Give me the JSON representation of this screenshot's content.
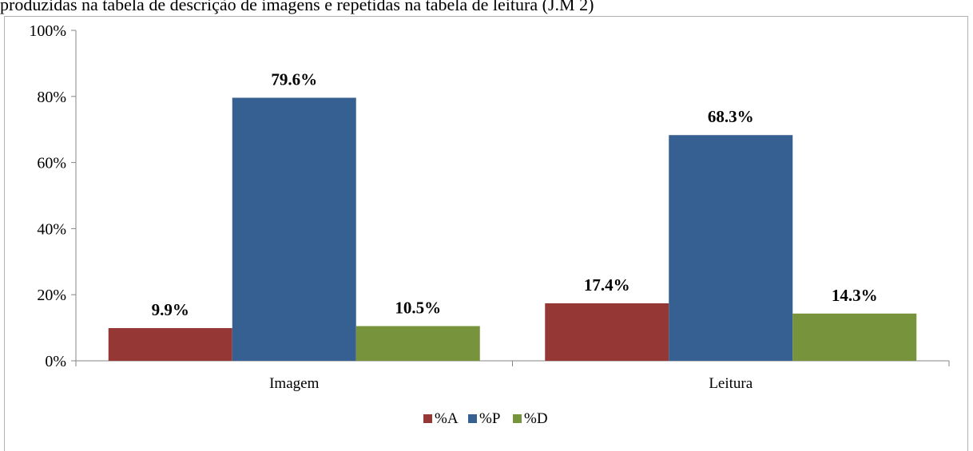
{
  "caption": "produzidas na tabela de descrição de imagens e repetidas na tabela de leitura (J.M 2)",
  "chart_data": {
    "type": "bar",
    "categories": [
      "Imagem",
      "Leitura"
    ],
    "series": [
      {
        "name": "%A",
        "values": [
          9.9,
          17.4
        ],
        "labels": [
          "9.9%",
          "17.4%"
        ],
        "color": "#953735"
      },
      {
        "name": "%P",
        "values": [
          79.6,
          68.3
        ],
        "labels": [
          "79.6%",
          "68.3%"
        ],
        "color": "#376092"
      },
      {
        "name": "%D",
        "values": [
          10.5,
          14.3
        ],
        "labels": [
          "10.5%",
          "14.3%"
        ],
        "color": "#77933c"
      }
    ],
    "ylim": [
      0,
      100
    ],
    "yticks": [
      "0%",
      "20%",
      "40%",
      "60%",
      "80%",
      "100%"
    ],
    "legend_position": "bottom",
    "grid": false
  }
}
